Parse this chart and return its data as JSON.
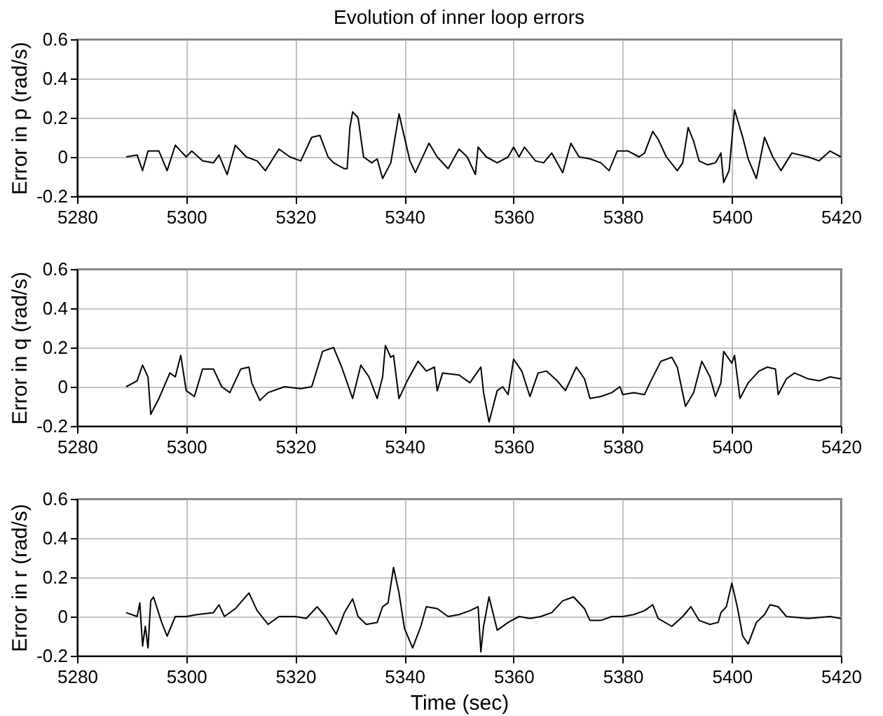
{
  "chart_data": [
    {
      "type": "line",
      "title": "Evolution of inner loop errors",
      "ylabel": "Error in p (rad/s)",
      "xlim": [
        5280,
        5420
      ],
      "xticks": [
        5280,
        5300,
        5320,
        5340,
        5360,
        5380,
        5400,
        5420
      ],
      "ylim": [
        -0.2,
        0.6
      ],
      "yticks": [
        -0.2,
        0,
        0.2,
        0.4,
        0.6
      ],
      "grid": true,
      "series": [
        {
          "color": "#000000",
          "x": [
            5289,
            5291,
            5292,
            5293,
            5295,
            5296.5,
            5298,
            5300,
            5301,
            5303,
            5305,
            5306,
            5307.5,
            5309,
            5311,
            5313,
            5314.5,
            5317,
            5319,
            5321,
            5323,
            5324.5,
            5326,
            5327,
            5329,
            5329.5,
            5330,
            5330.5,
            5331.5,
            5332.5,
            5334,
            5335,
            5336,
            5337.5,
            5339,
            5340,
            5341,
            5342,
            5344.5,
            5346,
            5348,
            5350,
            5351.5,
            5353,
            5353.5,
            5355,
            5357,
            5359,
            5360,
            5361,
            5362,
            5364,
            5365.5,
            5367,
            5369,
            5370.5,
            5372,
            5374,
            5376,
            5377.5,
            5379,
            5381,
            5383,
            5384,
            5385.5,
            5386.5,
            5388,
            5390,
            5391,
            5392,
            5393,
            5394,
            5395.5,
            5397,
            5398,
            5398.5,
            5399.5,
            5400.5,
            5402,
            5403,
            5404.5,
            5406,
            5407.5,
            5409,
            5411,
            5414,
            5416,
            5418,
            5420
          ],
          "values": [
            0.0,
            0.01,
            -0.07,
            0.03,
            0.03,
            -0.07,
            0.06,
            0.0,
            0.03,
            -0.02,
            -0.03,
            0.01,
            -0.09,
            0.06,
            0.0,
            -0.02,
            -0.07,
            0.04,
            0.0,
            -0.02,
            0.1,
            0.11,
            0.0,
            -0.03,
            -0.06,
            -0.06,
            0.15,
            0.23,
            0.2,
            0.0,
            -0.03,
            -0.01,
            -0.11,
            -0.03,
            0.22,
            0.1,
            -0.02,
            -0.08,
            0.07,
            0.0,
            -0.06,
            0.04,
            0.0,
            -0.09,
            0.05,
            0.0,
            -0.03,
            0.0,
            0.05,
            0.0,
            0.05,
            -0.02,
            -0.03,
            0.02,
            -0.08,
            0.07,
            0.0,
            -0.01,
            -0.03,
            -0.07,
            0.03,
            0.03,
            0.0,
            0.02,
            0.13,
            0.09,
            0.0,
            -0.07,
            -0.03,
            0.15,
            0.08,
            -0.02,
            -0.04,
            -0.03,
            0.02,
            -0.13,
            -0.07,
            0.24,
            0.1,
            -0.01,
            -0.11,
            0.1,
            0.0,
            -0.07,
            0.02,
            0.0,
            -0.02,
            0.03,
            0.0
          ]
        }
      ]
    },
    {
      "type": "line",
      "ylabel": "Error in q (rad/s)",
      "xlim": [
        5280,
        5420
      ],
      "xticks": [
        5280,
        5300,
        5320,
        5340,
        5360,
        5380,
        5400,
        5420
      ],
      "ylim": [
        -0.2,
        0.6
      ],
      "yticks": [
        -0.2,
        0,
        0.2,
        0.4,
        0.6
      ],
      "grid": true,
      "series": [
        {
          "color": "#000000",
          "x": [
            5289,
            5291,
            5292,
            5293,
            5293.5,
            5295,
            5297,
            5298,
            5299,
            5300,
            5301.5,
            5303,
            5305,
            5306.5,
            5308,
            5310,
            5311.5,
            5312,
            5313.5,
            5315,
            5318,
            5321,
            5323,
            5325,
            5327,
            5328.5,
            5330.5,
            5332,
            5333.5,
            5335,
            5336,
            5336.5,
            5337.5,
            5338,
            5339,
            5340.5,
            5342.5,
            5344,
            5345.5,
            5346,
            5347,
            5350,
            5352,
            5354,
            5354.5,
            5355.5,
            5357,
            5358,
            5359,
            5360,
            5361.5,
            5363,
            5364.5,
            5366,
            5368,
            5369.5,
            5371.5,
            5373,
            5374,
            5376,
            5378,
            5379.5,
            5380,
            5382,
            5384,
            5385,
            5387,
            5389,
            5390,
            5391.5,
            5393,
            5394.5,
            5396,
            5397,
            5398,
            5398.5,
            5400,
            5400.5,
            5401.5,
            5403,
            5405,
            5406.5,
            5408,
            5408.5,
            5410,
            5411.5,
            5414,
            5416,
            5418,
            5420
          ],
          "values": [
            0.0,
            0.03,
            0.11,
            0.05,
            -0.14,
            -0.06,
            0.07,
            0.05,
            0.16,
            -0.02,
            -0.05,
            0.09,
            0.09,
            0.0,
            -0.03,
            0.09,
            0.1,
            0.02,
            -0.07,
            -0.03,
            0.0,
            -0.01,
            0.0,
            0.18,
            0.2,
            0.1,
            -0.06,
            0.11,
            0.05,
            -0.06,
            0.05,
            0.21,
            0.15,
            0.16,
            -0.06,
            0.03,
            0.13,
            0.08,
            0.1,
            -0.02,
            0.07,
            0.06,
            0.02,
            0.1,
            -0.03,
            -0.18,
            -0.02,
            0.0,
            -0.04,
            0.14,
            0.08,
            -0.05,
            0.07,
            0.08,
            0.03,
            -0.02,
            0.1,
            0.04,
            -0.06,
            -0.05,
            -0.03,
            0.0,
            -0.04,
            -0.03,
            -0.04,
            0.02,
            0.13,
            0.15,
            0.1,
            -0.1,
            -0.03,
            0.13,
            0.05,
            -0.05,
            0.02,
            0.18,
            0.12,
            0.16,
            -0.06,
            0.02,
            0.08,
            0.1,
            0.09,
            -0.04,
            0.04,
            0.07,
            0.04,
            0.03,
            0.05,
            0.04
          ]
        }
      ]
    },
    {
      "type": "line",
      "xlabel": "Time (sec)",
      "ylabel": "Error in r (rad/s)",
      "xlim": [
        5280,
        5420
      ],
      "xticks": [
        5280,
        5300,
        5320,
        5340,
        5360,
        5380,
        5400,
        5420
      ],
      "ylim": [
        -0.2,
        0.6
      ],
      "yticks": [
        -0.2,
        0,
        0.2,
        0.4,
        0.6
      ],
      "grid": true,
      "series": [
        {
          "color": "#000000",
          "x": [
            5289,
            5291,
            5291.5,
            5292,
            5292.5,
            5293,
            5293.5,
            5294,
            5295.5,
            5296.5,
            5298,
            5300,
            5302,
            5305,
            5306,
            5307,
            5309,
            5311.5,
            5313,
            5315,
            5317,
            5320,
            5322,
            5324,
            5325.5,
            5327.5,
            5329,
            5330.5,
            5331.5,
            5333,
            5335,
            5336,
            5337,
            5338,
            5339,
            5340,
            5341.5,
            5343,
            5344,
            5346,
            5348,
            5350,
            5352,
            5353.5,
            5354,
            5354.5,
            5355.5,
            5357,
            5359,
            5361,
            5363,
            5365,
            5367,
            5369,
            5371,
            5373,
            5374,
            5376,
            5378,
            5380,
            5382,
            5384,
            5385.5,
            5386.5,
            5389,
            5391,
            5392.5,
            5394,
            5396,
            5397.5,
            5398,
            5399,
            5400,
            5401,
            5402,
            5403,
            5404.5,
            5406,
            5407,
            5408.5,
            5410,
            5414,
            5418,
            5420
          ],
          "values": [
            0.02,
            0.0,
            0.07,
            -0.15,
            -0.05,
            -0.16,
            0.08,
            0.1,
            -0.03,
            -0.1,
            0.0,
            0.0,
            0.01,
            0.02,
            0.06,
            0.0,
            0.04,
            0.12,
            0.03,
            -0.04,
            0.0,
            0.0,
            -0.01,
            0.05,
            0.0,
            -0.09,
            0.02,
            0.09,
            0.0,
            -0.04,
            -0.03,
            0.05,
            0.07,
            0.25,
            0.12,
            -0.06,
            -0.16,
            -0.05,
            0.05,
            0.04,
            0.0,
            0.01,
            0.03,
            0.05,
            -0.18,
            -0.05,
            0.1,
            -0.07,
            -0.03,
            0.0,
            -0.01,
            0.0,
            0.02,
            0.08,
            0.1,
            0.04,
            -0.02,
            -0.02,
            0.0,
            0.0,
            0.01,
            0.03,
            0.06,
            -0.01,
            -0.05,
            0.0,
            0.05,
            -0.02,
            -0.04,
            -0.03,
            0.02,
            0.05,
            0.17,
            0.05,
            -0.1,
            -0.14,
            -0.03,
            0.01,
            0.06,
            0.05,
            0.0,
            -0.01,
            0.0,
            -0.01
          ]
        }
      ]
    }
  ]
}
